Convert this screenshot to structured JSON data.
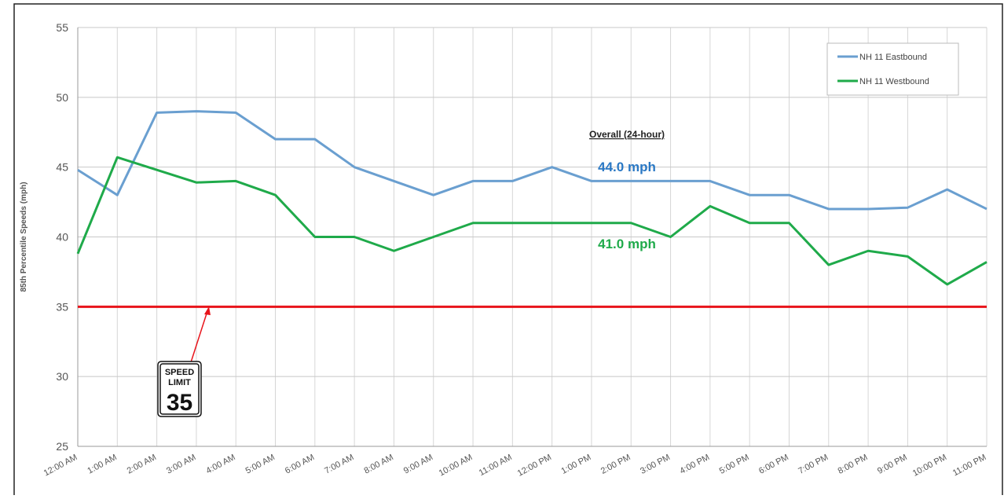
{
  "chart_data": {
    "type": "line",
    "ylabel": "85th Percentile Speeds (mph)",
    "categories": [
      "12:00 AM",
      "1:00 AM",
      "2:00 AM",
      "3:00 AM",
      "4:00 AM",
      "5:00 AM",
      "6:00 AM",
      "7:00 AM",
      "8:00 AM",
      "9:00 AM",
      "10:00 AM",
      "11:00 AM",
      "12:00 PM",
      "1:00 PM",
      "2:00 PM",
      "3:00 PM",
      "4:00 PM",
      "5:00 PM",
      "6:00 PM",
      "7:00 PM",
      "8:00 PM",
      "9:00 PM",
      "10:00 PM",
      "11:00 PM"
    ],
    "series": [
      {
        "name": "NH 11 Eastbound",
        "color": "#6a9fd0",
        "values": [
          44.8,
          43,
          48.9,
          49,
          48.9,
          47,
          47,
          45,
          44,
          43,
          44,
          44,
          45,
          44,
          44,
          44,
          44,
          43,
          43,
          42,
          42,
          42.1,
          43.4,
          42
        ]
      },
      {
        "name": "NH 11 Westbound",
        "color": "#1faa4a",
        "values": [
          38.8,
          45.7,
          44.8,
          43.9,
          44,
          43,
          40,
          40,
          39,
          40,
          41,
          41,
          41,
          41,
          41,
          40,
          42.2,
          41,
          41,
          38,
          39,
          38.6,
          36.6,
          38.2
        ]
      }
    ],
    "ylim": [
      25,
      55
    ],
    "yticks": [
      25,
      30,
      35,
      40,
      45,
      50,
      55
    ],
    "grid": true,
    "legend": "upper right",
    "reference_line": {
      "value": 35,
      "color": "#e8141b"
    },
    "annotations": {
      "overall": "Overall (24-hour)",
      "eastbound": "44.0 mph",
      "westbound": "41.0 mph"
    },
    "sign": [
      "SPEED",
      "LIMIT",
      "35"
    ]
  }
}
